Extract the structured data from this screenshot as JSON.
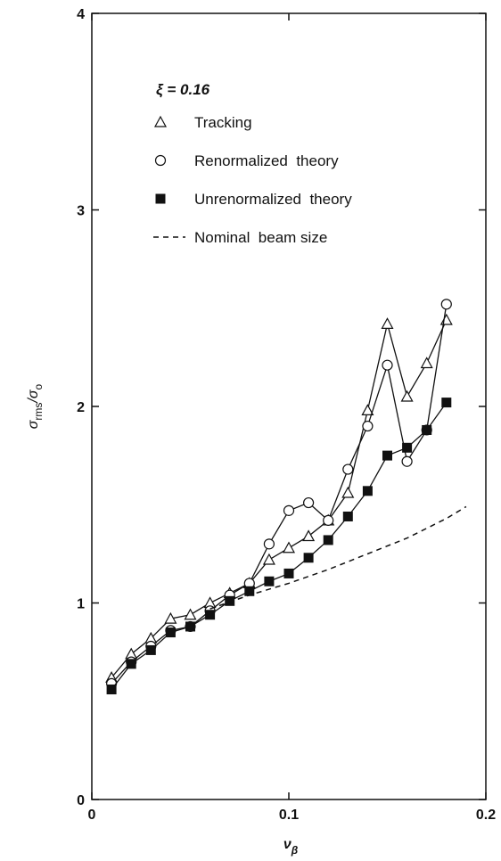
{
  "chart_data": {
    "type": "line",
    "xlabel": [
      "ν",
      "β"
    ],
    "ylabel": [
      "σ",
      "rms",
      "/σ",
      "o"
    ],
    "legend_title": "ξ = 0.16",
    "xlim": [
      0,
      0.2
    ],
    "ylim": [
      0,
      4
    ],
    "xticks": [
      0,
      0.1,
      0.2
    ],
    "yticks": [
      0,
      1,
      2,
      3,
      4
    ],
    "series": [
      {
        "name": "Tracking",
        "marker": "triangle",
        "color": "#111",
        "x": [
          0.01,
          0.02,
          0.03,
          0.04,
          0.05,
          0.06,
          0.07,
          0.08,
          0.09,
          0.1,
          0.11,
          0.12,
          0.13,
          0.14,
          0.15,
          0.16,
          0.17,
          0.18
        ],
        "values": [
          0.62,
          0.74,
          0.82,
          0.92,
          0.94,
          1.0,
          1.05,
          1.1,
          1.22,
          1.28,
          1.34,
          1.42,
          1.56,
          1.98,
          2.42,
          2.05,
          2.22,
          2.44
        ]
      },
      {
        "name": "Renormalized  theory",
        "marker": "circle",
        "color": "#111",
        "x": [
          0.01,
          0.02,
          0.03,
          0.04,
          0.05,
          0.06,
          0.07,
          0.08,
          0.09,
          0.1,
          0.11,
          0.12,
          0.13,
          0.14,
          0.15,
          0.16,
          0.17,
          0.18
        ],
        "values": [
          0.59,
          0.7,
          0.78,
          0.86,
          0.88,
          0.96,
          1.04,
          1.1,
          1.3,
          1.47,
          1.51,
          1.42,
          1.68,
          1.9,
          2.21,
          1.72,
          1.88,
          2.52
        ]
      },
      {
        "name": "Unrenormalized  theory",
        "marker": "square",
        "color": "#111",
        "x": [
          0.01,
          0.02,
          0.03,
          0.04,
          0.05,
          0.06,
          0.07,
          0.08,
          0.09,
          0.1,
          0.11,
          0.12,
          0.13,
          0.14,
          0.15,
          0.16,
          0.17,
          0.18
        ],
        "values": [
          0.56,
          0.69,
          0.76,
          0.85,
          0.88,
          0.94,
          1.01,
          1.06,
          1.11,
          1.15,
          1.23,
          1.32,
          1.44,
          1.57,
          1.75,
          1.79,
          1.88,
          2.02
        ]
      },
      {
        "name": "Nominal  beam size",
        "marker": "none",
        "dash": true,
        "color": "#111",
        "x": [
          0.06,
          0.08,
          0.1,
          0.12,
          0.14,
          0.16,
          0.18,
          0.19
        ],
        "values": [
          0.97,
          1.04,
          1.1,
          1.17,
          1.25,
          1.33,
          1.43,
          1.49
        ]
      }
    ]
  }
}
